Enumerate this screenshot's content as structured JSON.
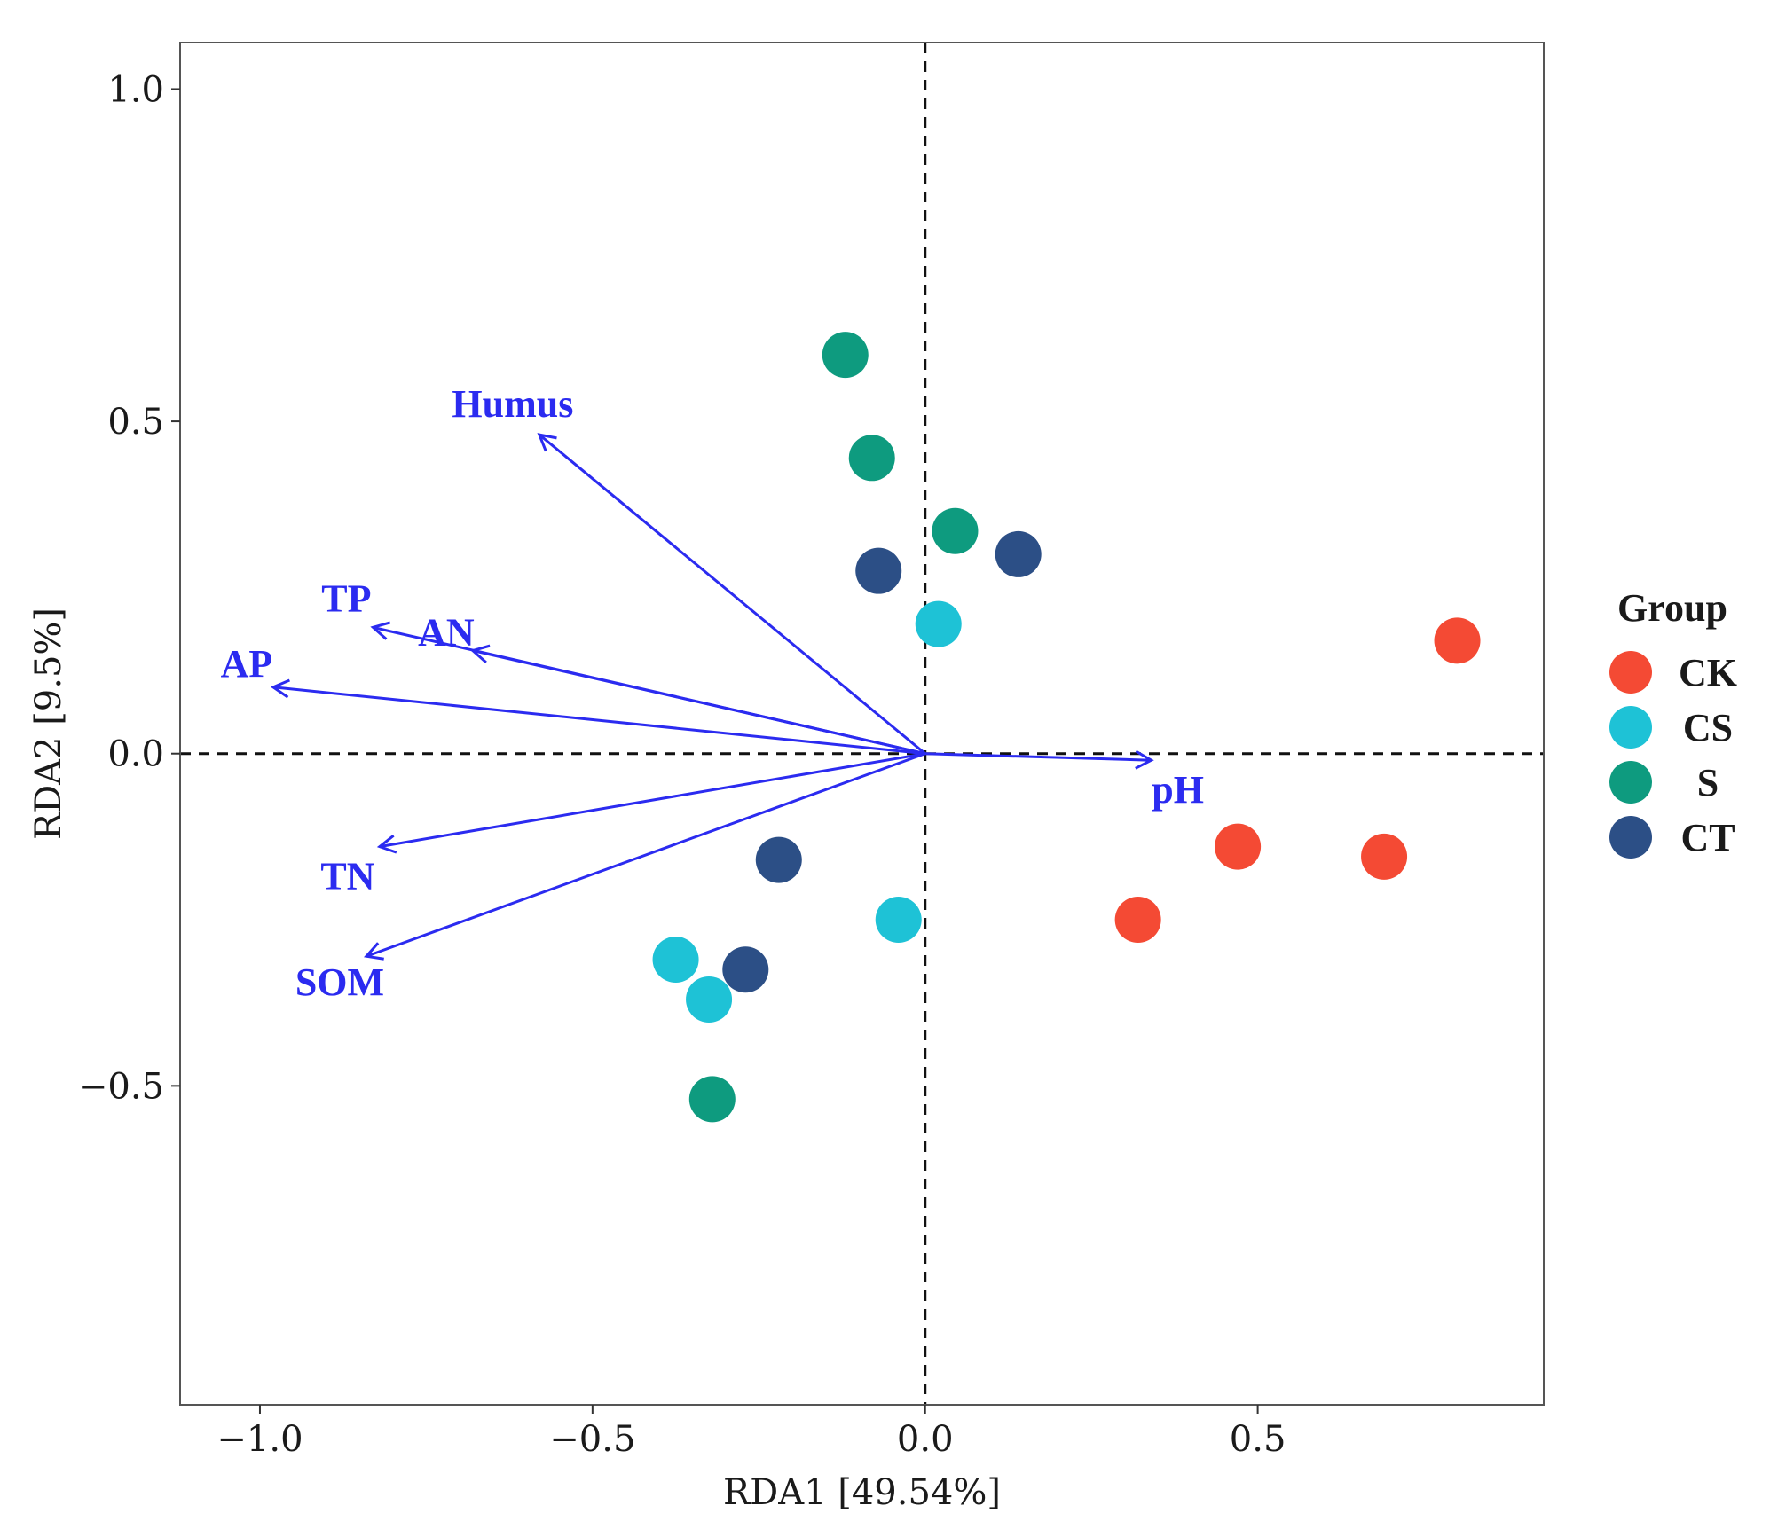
{
  "chart_data": {
    "type": "scatter",
    "xlabel": "RDA1 [49.54%]",
    "ylabel": "RDA2 [9.5%]",
    "xlim": [
      -1.12,
      0.93
    ],
    "ylim": [
      -0.98,
      1.07
    ],
    "x_ticks": [
      -1.0,
      -0.5,
      0.0,
      0.5
    ],
    "x_tick_labels": [
      "−1.0",
      "−0.5",
      "0.0",
      "0.5"
    ],
    "y_ticks": [
      1.0,
      0.5,
      0.0,
      -0.5
    ],
    "y_tick_labels": [
      "1.0",
      "0.5",
      "0.0",
      "−0.5"
    ],
    "grid": false,
    "reference_lines": {
      "x": 0,
      "y": 0,
      "style": "dashed"
    },
    "legend": {
      "title": "Group",
      "position": "right",
      "entries": [
        {
          "name": "CK",
          "color": "#f44a34"
        },
        {
          "name": "CS",
          "color": "#1ec2d6"
        },
        {
          "name": "S",
          "color": "#0e9b7f"
        },
        {
          "name": "CT",
          "color": "#2c4f86"
        }
      ]
    },
    "series": [
      {
        "name": "CK",
        "color": "#f44a34",
        "points": [
          [
            0.8,
            0.17
          ],
          [
            0.47,
            -0.14
          ],
          [
            0.69,
            -0.155
          ],
          [
            0.32,
            -0.25
          ]
        ]
      },
      {
        "name": "CS",
        "color": "#1ec2d6",
        "points": [
          [
            0.02,
            0.195
          ],
          [
            -0.04,
            -0.25
          ],
          [
            -0.375,
            -0.31
          ],
          [
            -0.325,
            -0.37
          ]
        ]
      },
      {
        "name": "S",
        "color": "#0e9b7f",
        "points": [
          [
            -0.12,
            0.6
          ],
          [
            -0.08,
            0.445
          ],
          [
            0.045,
            0.335
          ],
          [
            -0.32,
            -0.52
          ]
        ]
      },
      {
        "name": "CT",
        "color": "#2c4f86",
        "points": [
          [
            -0.07,
            0.275
          ],
          [
            0.14,
            0.3
          ],
          [
            -0.22,
            -0.16
          ],
          [
            -0.27,
            -0.325
          ]
        ]
      }
    ],
    "arrows": {
      "color": "#2b2bf0",
      "items": [
        {
          "name": "Humus",
          "x": -0.58,
          "y": 0.48
        },
        {
          "name": "TP",
          "x": -0.83,
          "y": 0.19
        },
        {
          "name": "AN",
          "x": -0.68,
          "y": 0.155
        },
        {
          "name": "AP",
          "x": -0.98,
          "y": 0.1
        },
        {
          "name": "TN",
          "x": -0.82,
          "y": -0.14
        },
        {
          "name": "SOM",
          "x": -0.84,
          "y": -0.305
        },
        {
          "name": "pH",
          "x": 0.34,
          "y": -0.01
        }
      ]
    }
  }
}
